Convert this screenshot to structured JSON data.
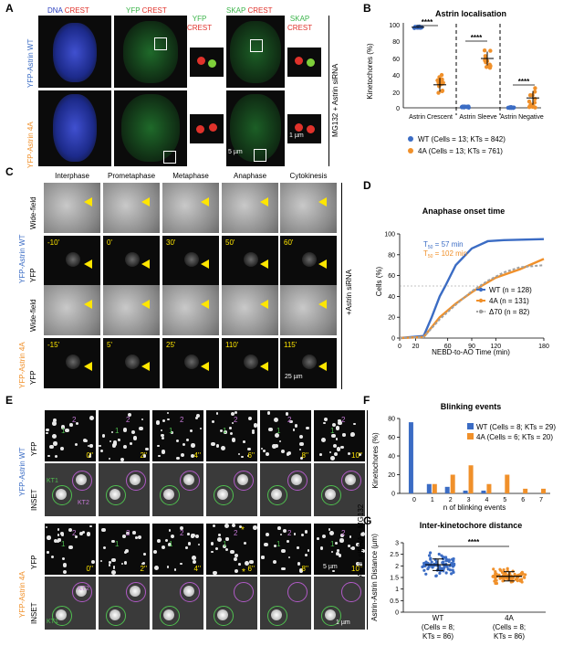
{
  "panelA": {
    "label": "A",
    "headers": [
      "DNA",
      "CREST",
      "YFP",
      "CREST",
      "YFP",
      "CREST",
      "SKAP",
      "CREST",
      "SKAP",
      "CREST"
    ],
    "row_wt": "YFP-Astrin WT",
    "row_4a": "YFP-Astrin 4A",
    "side": "MG132 + Astrin siRNA",
    "scale1": "5 µm",
    "scale2": "1 µm"
  },
  "panelB": {
    "label": "B",
    "title": "Astrin localisation",
    "ylabel": "Kinetochores (%)",
    "yticks": [
      "100",
      "80",
      "60",
      "40",
      "20",
      "0"
    ],
    "categories": [
      "Astrin Crescent",
      "Astrin Sleeve",
      "Astrin Negative"
    ],
    "sig": [
      "****",
      "****",
      "****"
    ],
    "legend": [
      "WT (Cells = 13; KTs = 842)",
      "4A (Cells = 13; KTs = 761)"
    ]
  },
  "panelC": {
    "label": "C",
    "phases": [
      "Interphase",
      "Prometaphase",
      "Metaphase",
      "Anaphase",
      "Cytokinesis"
    ],
    "row_wt": "YFP-Astrin WT",
    "row_4a": "YFP-Astrin 4A",
    "wide": "Wide-field",
    "yfp": "YFP",
    "times_wt": [
      "-10'",
      "0'",
      "30'",
      "50'",
      "60'"
    ],
    "times_4a": [
      "-15'",
      "5'",
      "25'",
      "110'",
      "115'"
    ],
    "side": "+Astrin siRNA",
    "scale": "25 µm"
  },
  "panelD": {
    "label": "D",
    "title": "Anaphase onset time",
    "xlabel": "NEBD-to-AO Time (min)",
    "ylabel": "Cells (%)",
    "t50_wt_a": "T",
    "t50_wt_sub": "50",
    "t50_wt_b": " = 57 min",
    "t50_4a_a": "T",
    "t50_4a_sub": "50",
    "t50_4a_b": " = 102 min",
    "xticks": [
      "0",
      "20",
      "60",
      "90",
      "120",
      "180"
    ],
    "yticks": [
      "0",
      "20",
      "40",
      "60",
      "80",
      "100"
    ],
    "legend": [
      "WT (n = 128)",
      "4A (n = 131)",
      "Δ70  (n = 82)"
    ]
  },
  "panelE": {
    "label": "E",
    "row_wt": "YFP-Astrin WT",
    "row_4a": "YFP-Astrin 4A",
    "yfp": "YFP",
    "inset": "INSET",
    "times": [
      "0''",
      "2''",
      "4''",
      "6''",
      "8''",
      "10''"
    ],
    "kt1": "KT1",
    "kt2": "KT2",
    "num1": "1",
    "num2": "2",
    "star": "*",
    "side": "Astrin siRNA + MG132",
    "scale1": "5 µm",
    "scale2": "1 µm"
  },
  "panelF": {
    "label": "F",
    "title": "Blinking events",
    "ylabel": "Kinetochores (%)",
    "xlabel": "n of blinking events",
    "yticks": [
      "0",
      "20",
      "40",
      "60",
      "80"
    ],
    "legend": [
      "WT (Cells = 8; KTs = 29)",
      "4A (Cells = 6; KTs = 20)"
    ]
  },
  "panelG": {
    "label": "G",
    "title": "Inter-kinetochore distance",
    "ylabel": "Astrin-Astrin Distance (µm)",
    "yticks": [
      "0",
      "0.5",
      "1",
      "1.5",
      "2",
      "2.5",
      "3"
    ],
    "sig": "****",
    "x_wt": [
      "WT",
      "(Cells = 8;",
      "KTs = 86)"
    ],
    "x_4a": [
      "4A",
      "(Cells = 8;",
      "KTs = 86)"
    ]
  },
  "colors": {
    "wt": "#3b6cc4",
    "fourA": "#f0902a",
    "d70": "#a0a0a0",
    "crest": "#e0322b",
    "yfp": "#3cb44b",
    "dna": "#2a3fbf",
    "magenta": "#b15ac7",
    "green_circle": "#4fbf4f",
    "yellow": "#ffe600"
  },
  "chart_data": [
    {
      "type": "scatter",
      "panel": "B",
      "title": "Astrin localisation",
      "ylabel": "Kinetochores (%)",
      "ylim": [
        0,
        100
      ],
      "categories": [
        "Astrin Crescent",
        "Astrin Sleeve",
        "Astrin Negative"
      ],
      "series": [
        {
          "name": "WT",
          "mean": [
            98,
            1,
            0
          ]
        },
        {
          "name": "4A",
          "mean": [
            28,
            60,
            12
          ]
        }
      ]
    },
    {
      "type": "line",
      "panel": "D",
      "title": "Anaphase onset time",
      "xlabel": "NEBD-to-AO Time (min)",
      "ylabel": "Cells (%)",
      "xlim": [
        0,
        180
      ],
      "ylim": [
        0,
        100
      ],
      "series": [
        {
          "name": "WT",
          "x": [
            0,
            30,
            40,
            50,
            57,
            70,
            90,
            110,
            130,
            180
          ],
          "y": [
            0,
            2,
            20,
            40,
            50,
            70,
            86,
            93,
            94,
            95
          ]
        },
        {
          "name": "4A",
          "x": [
            0,
            30,
            50,
            70,
            90,
            102,
            120,
            150,
            180
          ],
          "y": [
            0,
            1,
            20,
            33,
            44,
            50,
            58,
            66,
            76
          ]
        },
        {
          "name": "Δ70",
          "x": [
            0,
            30,
            50,
            70,
            90,
            110,
            130,
            150,
            180
          ],
          "y": [
            0,
            1,
            18,
            32,
            45,
            55,
            63,
            68,
            70
          ]
        }
      ]
    },
    {
      "type": "bar",
      "panel": "F",
      "title": "Blinking events",
      "xlabel": "n of blinking events",
      "ylabel": "Kinetochores (%)",
      "ylim": [
        0,
        80
      ],
      "categories": [
        "0",
        "1",
        "2",
        "3",
        "4",
        "5",
        "6",
        "7"
      ],
      "series": [
        {
          "name": "WT",
          "values": [
            76,
            10,
            7,
            3,
            3,
            0,
            0,
            0
          ]
        },
        {
          "name": "4A",
          "values": [
            0,
            10,
            20,
            30,
            10,
            20,
            5,
            5
          ]
        }
      ]
    },
    {
      "type": "scatter",
      "panel": "G",
      "title": "Inter-kinetochore distance",
      "ylabel": "Astrin-Astrin Distance (µm)",
      "ylim": [
        0,
        3
      ],
      "categories": [
        "WT",
        "4A"
      ],
      "series": [
        {
          "name": "WT",
          "mean": 2.05,
          "sd": 0.25
        },
        {
          "name": "4A",
          "mean": 1.55,
          "sd": 0.2
        }
      ]
    }
  ]
}
